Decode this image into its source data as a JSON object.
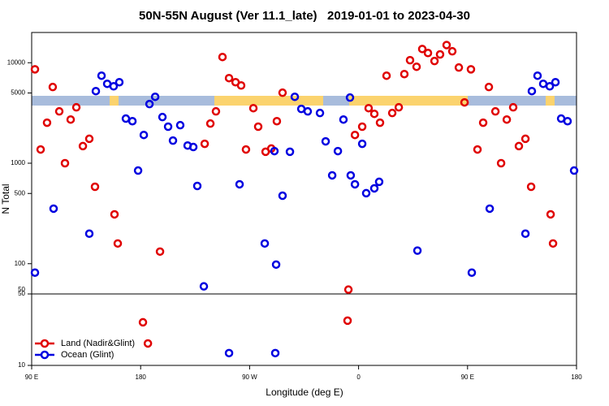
{
  "chart_data": {
    "type": "scatter",
    "title": "50N-55N August (Ver 11.1_late)   2019-01-01 to 2023-04-30",
    "x_label": "Longitude (deg E)",
    "y_label": "N Total",
    "log_y": true,
    "legend": "bottom-left",
    "xlim": [
      90,
      540
    ],
    "xticks": [
      {
        "value": 90,
        "label": "90 E"
      },
      180,
      {
        "value": 270,
        "label": "90 W"
      },
      {
        "value": 360,
        "label": "0"
      },
      {
        "value": 450,
        "label": "90 E"
      },
      {
        "value": 540,
        "label": "180"
      }
    ],
    "panels": [
      {
        "ylim": [
          50,
          20000
        ],
        "yticks": [
          50,
          100,
          500,
          1000,
          5000,
          10000
        ]
      },
      {
        "ylim": [
          10,
          50
        ],
        "yticks": [
          10,
          50
        ]
      }
    ],
    "series": [
      {
        "name": "Land (Nadir&Glint)",
        "color": "#e00000",
        "x": [
          92.7,
          97.4,
          102.7,
          107.4,
          112.8,
          117.5,
          122.2,
          126.9,
          132.3,
          137.6,
          142.3,
          158.4,
          161.1,
          181.9,
          186.0,
          196.0,
          232.9,
          237.6,
          242.2,
          247.6,
          253.0,
          258.4,
          263.0,
          267.0,
          273.1,
          277.1,
          283.2,
          287.9,
          292.5,
          297.2,
          351.6,
          350.9,
          357.0,
          363.0,
          368.3,
          373.0,
          377.7,
          383.1,
          387.8,
          393.2,
          397.8,
          402.5,
          407.9,
          412.6,
          417.3,
          422.7,
          427.3,
          432.7,
          437.4,
          442.8,
          447.5,
          452.8,
          458.2,
          462.9,
          467.6,
          473.0,
          477.7,
          482.4,
          487.7,
          492.4,
          497.8,
          502.5,
          518.6,
          520.6
        ],
        "values": [
          8600,
          1370,
          2530,
          5730,
          3280,
          1000,
          2720,
          3600,
          1480,
          1750,
          583,
          310,
          159,
          26.4,
          16.4,
          132,
          1560,
          2480,
          3280,
          11400,
          7030,
          6400,
          5940,
          1370,
          3530,
          2310,
          1300,
          1400,
          2620,
          5030,
          55.2,
          27.4,
          1910,
          2310,
          3530,
          3100,
          2530,
          7430,
          3160,
          3600,
          7710,
          10600,
          9120,
          13700,
          12500,
          10400,
          12100,
          15000,
          13000,
          8960,
          4030,
          8600,
          1370,
          2530,
          5730,
          3280,
          1000,
          2720,
          3600,
          1480,
          1750,
          583,
          310,
          159
        ]
      },
      {
        "name": "Ocean (Glint)",
        "color": "#0000e0",
        "x": [
          92.7,
          108.1,
          137.6,
          143.0,
          147.7,
          152.4,
          157.7,
          162.4,
          167.8,
          173.2,
          177.9,
          182.6,
          187.3,
          192.0,
          198.0,
          202.7,
          206.7,
          212.7,
          218.8,
          223.5,
          226.8,
          232.2,
          253.0,
          261.7,
          282.5,
          290.5,
          291.2,
          291.9,
          297.2,
          303.3,
          307.3,
          312.7,
          318.0,
          328.1,
          332.8,
          338.2,
          342.9,
          347.5,
          352.9,
          353.5,
          357.0,
          363.0,
          366.3,
          373.0,
          377.0,
          408.6,
          453.5,
          468.3,
          497.8,
          503.1,
          507.8,
          512.5,
          517.9,
          522.6,
          527.3,
          532.6,
          538.0
        ],
        "values": [
          81.5,
          353,
          199,
          5220,
          7430,
          6170,
          5830,
          6400,
          2780,
          2620,
          845,
          1910,
          3880,
          4580,
          2880,
          2310,
          1680,
          2390,
          1500,
          1450,
          594,
          59.5,
          13.2,
          617,
          159,
          1320,
          13.2,
          98,
          475,
          1300,
          4580,
          3470,
          3280,
          3160,
          1650,
          757,
          1320,
          2720,
          4500,
          757,
          617,
          1560,
          503,
          562,
          653,
          135,
          81.5,
          353,
          199,
          5220,
          7430,
          6170,
          5830,
          6400,
          2780,
          2620,
          845
        ]
      }
    ]
  }
}
